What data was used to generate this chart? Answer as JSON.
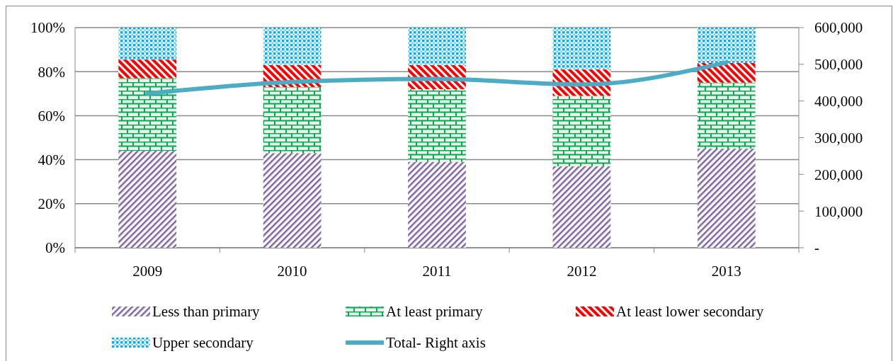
{
  "chart_data": {
    "type": "bar",
    "stacked": true,
    "categories": [
      "2009",
      "2010",
      "2011",
      "2012",
      "2013"
    ],
    "series": [
      {
        "name": "Less than primary",
        "color": "#8064a2",
        "values": [
          44,
          43,
          39,
          37,
          45
        ]
      },
      {
        "name": "At least primary",
        "color": "#00b050",
        "values": [
          33,
          30,
          33,
          32,
          30
        ]
      },
      {
        "name": "At least lower secondary",
        "color": "#ff0000",
        "values": [
          8.5,
          10,
          11,
          12,
          9
        ]
      },
      {
        "name": "Upper secondary",
        "color": "#00b0f0",
        "values": [
          14.5,
          17,
          17,
          19,
          16
        ]
      },
      {
        "name": "Total- Right axis",
        "type": "line",
        "axis": "y2",
        "color": "#4bacc6",
        "values": [
          420000,
          452000,
          460000,
          445000,
          505000
        ]
      }
    ],
    "ylim": [
      0,
      100
    ],
    "yticks": [
      {
        "value": 0,
        "label": "0%"
      },
      {
        "value": 20,
        "label": "20%"
      },
      {
        "value": 40,
        "label": "40%"
      },
      {
        "value": 60,
        "label": "60%"
      },
      {
        "value": 80,
        "label": "80%"
      },
      {
        "value": 100,
        "label": "100%"
      }
    ],
    "y2lim": [
      0,
      600000
    ],
    "y2ticks": [
      {
        "value": 0,
        "label": "-"
      },
      {
        "value": 100000,
        "label": "100,000"
      },
      {
        "value": 200000,
        "label": "200,000"
      },
      {
        "value": 300000,
        "label": "300,000"
      },
      {
        "value": 400000,
        "label": "400,000"
      },
      {
        "value": 500000,
        "label": "500,000"
      },
      {
        "value": 600000,
        "label": "600,000"
      }
    ],
    "grid": "y",
    "legend": "bottom",
    "marker": "none",
    "line_style": "solid"
  }
}
